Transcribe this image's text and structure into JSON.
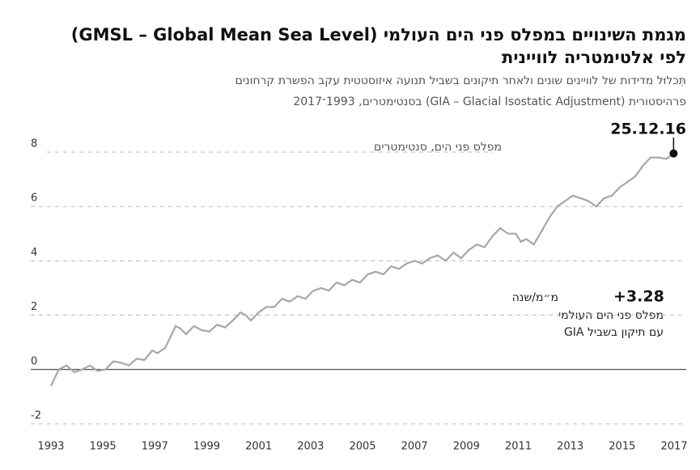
{
  "chart_data": {
    "type": "line",
    "title": [
      "מגמת השינויים במפלס פני הים העולמי (GMSL – Global Mean Sea Level)",
      "לפי אלטימטריה לוויינית"
    ],
    "subtitle": [
      "תְּכלוּל מדידות של לוויינים שונים ולאחר תיקונים בשביל תנועה איזוסטטית עקב הפשרת קרחונים",
      "פרהיסטורית (GIA – Glacial Isostatic Adjustment) בסנטימטרים, 1993־2017"
    ],
    "y_axis_label": "מפלס פני הים, סנטימטרים",
    "end_label": "25.12.16",
    "annotation": {
      "value": "+3.28",
      "unit": "מ״מ/שנה",
      "lines": [
        "מפלס פני הים העולמי",
        "עם תיקון בשביל GIA"
      ]
    },
    "x": [
      1993.0,
      1993.3,
      1993.6,
      1993.9,
      1994.2,
      1994.5,
      1994.8,
      1995.1,
      1995.4,
      1995.7,
      1996.0,
      1996.3,
      1996.6,
      1996.9,
      1997.1,
      1997.4,
      1997.6,
      1997.8,
      1998.0,
      1998.2,
      1998.5,
      1998.8,
      1999.1,
      1999.4,
      1999.7,
      2000.0,
      2000.3,
      2000.5,
      2000.7,
      2001.0,
      2001.3,
      2001.6,
      2001.9,
      2002.2,
      2002.5,
      2002.8,
      2003.1,
      2003.4,
      2003.7,
      2004.0,
      2004.3,
      2004.6,
      2004.9,
      2005.2,
      2005.5,
      2005.8,
      2006.1,
      2006.4,
      2006.7,
      2007.0,
      2007.3,
      2007.6,
      2007.9,
      2008.2,
      2008.5,
      2008.8,
      2009.1,
      2009.4,
      2009.7,
      2010.0,
      2010.3,
      2010.6,
      2010.9,
      2011.1,
      2011.3,
      2011.6,
      2011.9,
      2012.2,
      2012.5,
      2012.8,
      2013.1,
      2013.4,
      2013.7,
      2014.0,
      2014.3,
      2014.6,
      2014.9,
      2015.2,
      2015.5,
      2015.8,
      2016.1,
      2016.4,
      2016.7,
      2016.98
    ],
    "series": [
      {
        "color": "#a6a6a6",
        "values": [
          -0.6,
          0.0,
          0.15,
          -0.1,
          0.0,
          0.15,
          -0.05,
          0.0,
          0.3,
          0.25,
          0.15,
          0.4,
          0.35,
          0.7,
          0.6,
          0.8,
          1.2,
          1.6,
          1.5,
          1.3,
          1.6,
          1.45,
          1.4,
          1.65,
          1.55,
          1.8,
          2.1,
          2.0,
          1.8,
          2.1,
          2.3,
          2.3,
          2.6,
          2.5,
          2.7,
          2.6,
          2.9,
          3.0,
          2.9,
          3.2,
          3.1,
          3.3,
          3.2,
          3.5,
          3.6,
          3.5,
          3.8,
          3.7,
          3.9,
          4.0,
          3.9,
          4.1,
          4.2,
          4.0,
          4.3,
          4.1,
          4.4,
          4.6,
          4.5,
          4.9,
          5.2,
          5.0,
          5.0,
          4.7,
          4.8,
          4.6,
          5.1,
          5.6,
          6.0,
          6.2,
          6.4,
          6.3,
          6.2,
          6.0,
          6.3,
          6.4,
          6.7,
          6.9,
          7.1,
          7.5,
          7.8,
          7.8,
          7.75,
          7.95
        ]
      }
    ],
    "xlim": [
      1993,
      2017
    ],
    "xticks": [
      1993,
      1995,
      1997,
      1999,
      2001,
      2003,
      2005,
      2007,
      2009,
      2011,
      2013,
      2015,
      2017
    ],
    "ylim": [
      -2,
      8
    ],
    "yticks": [
      -2,
      0,
      2,
      4,
      6,
      8
    ],
    "grid": true
  }
}
